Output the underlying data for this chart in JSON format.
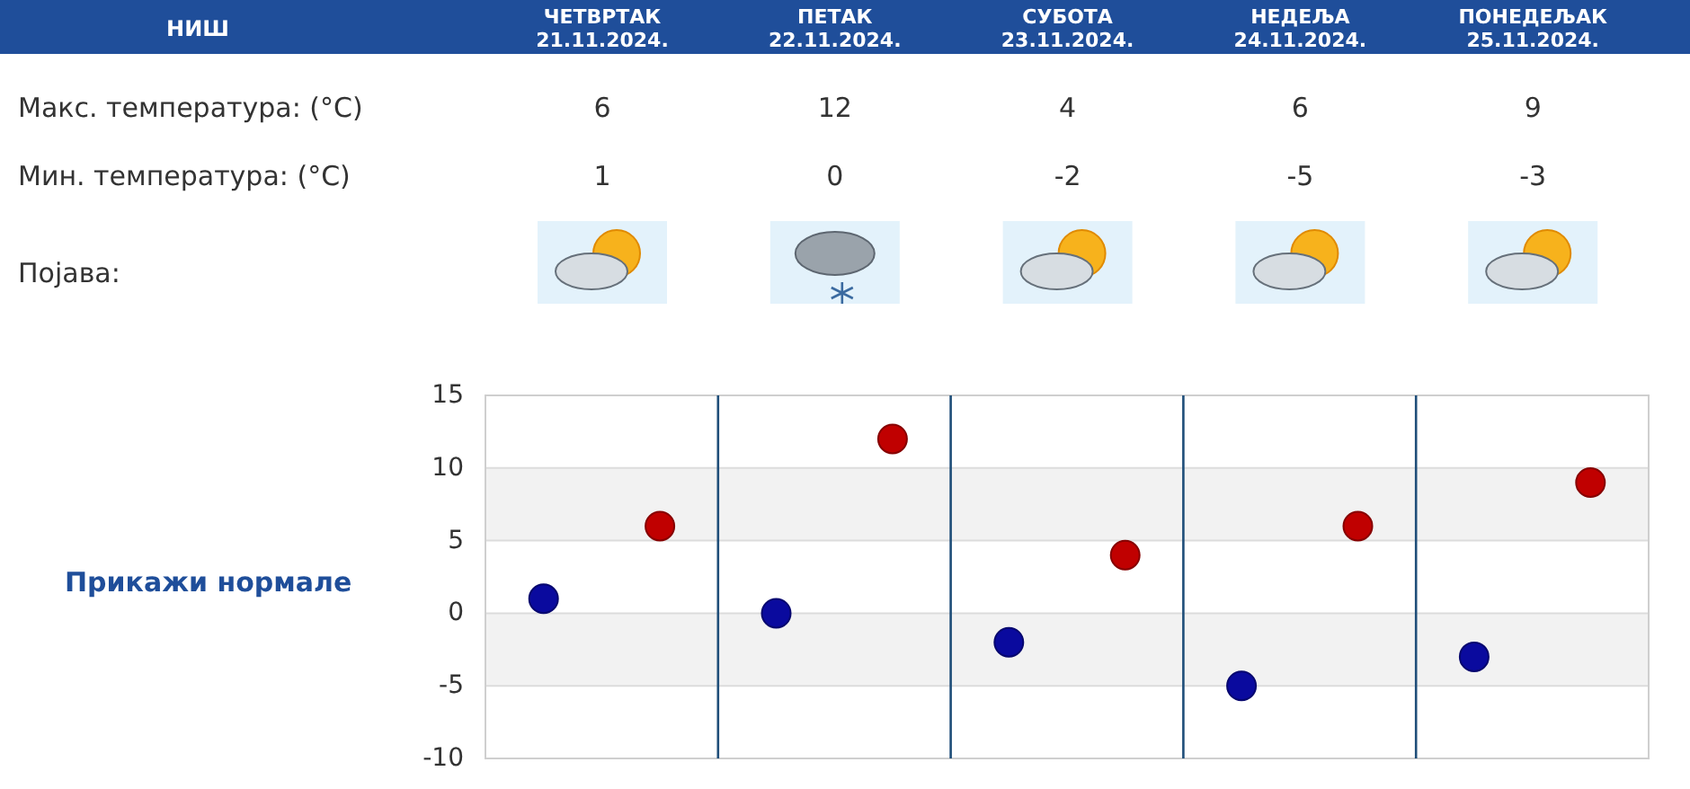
{
  "chart_data": [
    {
      "type": "other",
      "title": "НИШ",
      "categories": [
        "ЧЕТВРТАК 21.11.2024.",
        "ПЕТАК 22.11.2024.",
        "СУБОТА 23.11.2024.",
        "НЕДЕЉА 24.11.2024.",
        "ПОНЕДЕЉАК 25.11.2024."
      ],
      "series": [
        {
          "name": "Макс. температура: (°C)",
          "values": [
            6,
            12,
            4,
            6,
            9
          ]
        },
        {
          "name": "Мин. температура: (°C)",
          "values": [
            1,
            0,
            -2,
            -5,
            -3
          ]
        }
      ],
      "data_labels": true,
      "annotations": [
        "Појава:"
      ]
    },
    {
      "type": "scatter",
      "categories": [
        null,
        null,
        null,
        null,
        null,
        null,
        null,
        null,
        null,
        null
      ],
      "ylim": [
        -10,
        15
      ],
      "yticks": [
        -10,
        -5,
        0,
        5,
        10,
        15
      ],
      "tick_labels": "y",
      "grid": true,
      "marker": "circle",
      "bands": [
        {
          "axis": "y",
          "from": 5,
          "to": 10,
          "color": "#f2f2f2"
        },
        {
          "axis": "y",
          "from": -5,
          "to": 0,
          "color": "#f2f2f2"
        }
      ],
      "series": [
        {
          "color": "#0a0a9e",
          "values": [
            1,
            null,
            0,
            null,
            -2,
            null,
            -5,
            null,
            -3,
            null
          ]
        },
        {
          "color": "#c00000",
          "values": [
            null,
            6,
            null,
            12,
            null,
            4,
            null,
            6,
            null,
            9
          ]
        }
      ],
      "annotations": [
        "Прикажи нормале"
      ]
    }
  ]
}
